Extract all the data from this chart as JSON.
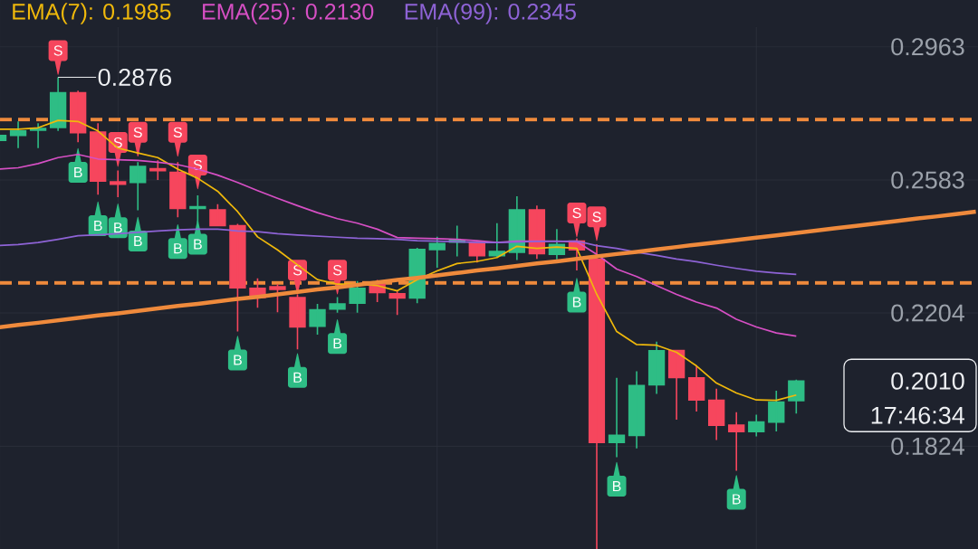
{
  "chart_data": {
    "type": "candlestick",
    "categories": [
      null,
      null,
      null,
      null,
      null,
      null,
      null,
      null,
      null,
      null,
      null,
      null,
      null,
      null,
      null,
      null,
      null,
      null,
      null,
      null,
      null,
      null,
      null,
      null,
      null,
      null,
      null,
      null,
      null,
      null,
      null,
      null,
      null,
      null,
      null,
      null,
      null,
      null,
      null,
      null,
      null,
      null,
      null,
      null,
      null,
      null,
      null,
      null,
      null,
      null
    ],
    "ohlc": [
      [
        0.2696,
        0.271,
        0.2696,
        0.271
      ],
      [
        0.271,
        0.275,
        0.2674,
        0.2723
      ],
      [
        0.2725,
        0.2745,
        0.2674,
        0.273
      ],
      [
        0.2733,
        0.2876,
        0.2723,
        0.2832
      ],
      [
        0.2832,
        0.2838,
        0.2691,
        0.2718
      ],
      [
        0.272,
        0.2745,
        0.2541,
        0.258
      ],
      [
        0.2578,
        0.261,
        0.2534,
        0.2571
      ],
      [
        0.2576,
        0.2634,
        0.2497,
        0.2622
      ],
      [
        0.2615,
        0.2639,
        0.2583,
        0.261
      ],
      [
        0.2605,
        0.2634,
        0.2477,
        0.2502
      ],
      [
        0.2502,
        0.2539,
        0.246,
        0.2507
      ],
      [
        0.2498,
        0.2514,
        0.2453,
        0.2453
      ],
      [
        0.2453,
        0.2458,
        0.2151,
        0.2276
      ],
      [
        0.2274,
        0.2303,
        0.2219,
        0.2248
      ],
      [
        0.2279,
        0.2286,
        0.2206,
        0.2271
      ],
      [
        0.2248,
        0.2257,
        0.21,
        0.2164
      ],
      [
        0.2166,
        0.223,
        0.2142,
        0.2213
      ],
      [
        0.2215,
        0.2249,
        0.2205,
        0.223
      ],
      [
        0.2232,
        0.2295,
        0.2205,
        0.2274
      ],
      [
        0.2286,
        0.2298,
        0.2235,
        0.2262
      ],
      [
        0.2259,
        0.2265,
        0.2198,
        0.2247
      ],
      [
        0.2247,
        0.239,
        0.2232,
        0.2385
      ],
      [
        0.2385,
        0.2421,
        0.2333,
        0.2402
      ],
      [
        0.2406,
        0.2453,
        0.2365,
        0.2411
      ],
      [
        0.2405,
        0.2405,
        0.2348,
        0.2367
      ],
      [
        0.2367,
        0.246,
        0.2362,
        0.2379
      ],
      [
        0.2377,
        0.2537,
        0.2355,
        0.2498
      ],
      [
        0.2498,
        0.251,
        0.2358,
        0.2373
      ],
      [
        0.2371,
        0.2443,
        0.2357,
        0.2399
      ],
      [
        0.2409,
        0.2417,
        0.2325,
        0.2384
      ],
      [
        0.2357,
        0.24,
        0.1531,
        0.1835
      ],
      [
        0.1835,
        0.2019,
        0.1793,
        0.1855
      ],
      [
        0.1855,
        0.2038,
        0.1818,
        0.1997
      ],
      [
        0.1999,
        0.2122,
        0.1973,
        0.2096
      ],
      [
        0.2097,
        0.2097,
        0.19,
        0.202
      ],
      [
        0.2019,
        0.2054,
        0.1923,
        0.1956
      ],
      [
        0.1955,
        0.1988,
        0.1842,
        0.1884
      ],
      [
        0.1884,
        0.1921,
        0.1754,
        0.1866
      ],
      [
        0.1866,
        0.1914,
        0.1852,
        0.1893
      ],
      [
        0.1893,
        0.1982,
        0.1866,
        0.195
      ],
      [
        0.1954,
        0.2014,
        0.1917,
        0.201
      ],
      null,
      null,
      null,
      null,
      null,
      null,
      null,
      null,
      null
    ],
    "colors": [
      "#2ebd85",
      "#2ebd85",
      "#2ebd85",
      "#2ebd85",
      "#f6465d",
      "#f6465d",
      "#f6465d",
      "#2ebd85",
      "#f6465d",
      "#f6465d",
      "#2ebd85",
      "#f6465d",
      "#f6465d",
      "#f6465d",
      "#f6465d",
      "#f6465d",
      "#2ebd85",
      "#2ebd85",
      "#2ebd85",
      "#f6465d",
      "#f6465d",
      "#2ebd85",
      "#2ebd85",
      "#2ebd85",
      "#f6465d",
      "#2ebd85",
      "#2ebd85",
      "#f6465d",
      "#2ebd85",
      "#f6465d",
      "#f6465d",
      "#2ebd85",
      "#2ebd85",
      "#2ebd85",
      "#f6465d",
      "#f6465d",
      "#f6465d",
      "#f6465d",
      "#2ebd85",
      "#2ebd85",
      "#2ebd85",
      null,
      null,
      null,
      null,
      null,
      null,
      null,
      null,
      null
    ],
    "series": [
      {
        "name": "EMA(7): 0.1985",
        "type": "line",
        "color": "#f0b90b",
        "values": [
          0.2728,
          0.2728,
          0.2732,
          0.2753,
          0.275,
          0.2723,
          0.2674,
          0.266,
          0.2647,
          0.2614,
          0.2588,
          0.2551,
          0.2493,
          0.2421,
          0.2384,
          0.2341,
          0.2299,
          0.2286,
          0.2286,
          0.2282,
          0.2267,
          0.2299,
          0.2324,
          0.2345,
          0.2351,
          0.2362,
          0.2394,
          0.2388,
          0.2392,
          0.2388,
          0.2257,
          0.2151,
          0.2114,
          0.2112,
          0.2092,
          0.2053,
          0.2004,
          0.1976,
          0.1956,
          0.1955,
          0.197,
          null,
          null,
          null,
          null,
          null,
          null,
          null,
          null,
          null
        ]
      },
      {
        "name": "EMA(25): 0.2130",
        "type": "line",
        "color": "#d64fc4",
        "values": [
          0.2614,
          0.2618,
          0.263,
          0.2647,
          0.2656,
          0.2643,
          0.2641,
          0.2639,
          0.2634,
          0.2627,
          0.2614,
          0.2597,
          0.2576,
          0.2553,
          0.2531,
          0.251,
          0.249,
          0.2473,
          0.246,
          0.2443,
          0.2419,
          0.2417,
          0.2416,
          0.2414,
          0.241,
          0.2405,
          0.2409,
          0.2409,
          0.2409,
          0.2407,
          0.2371,
          0.2329,
          0.2308,
          0.2282,
          0.2257,
          0.2235,
          0.2218,
          0.2186,
          0.2164,
          0.2147,
          0.2138,
          null,
          null,
          null,
          null,
          null,
          null,
          null,
          null,
          null
        ]
      },
      {
        "name": "EMA(99): 0.2345",
        "type": "line",
        "color": "#8e63d6",
        "values": [
          0.2396,
          0.2399,
          0.2405,
          0.2414,
          0.2424,
          0.2427,
          0.243,
          0.2434,
          0.2438,
          0.2441,
          0.2443,
          0.2443,
          0.2438,
          0.2436,
          0.243,
          0.2426,
          0.2423,
          0.242,
          0.2417,
          0.2416,
          0.2414,
          0.241,
          0.2409,
          0.2407,
          0.2405,
          0.2405,
          0.2406,
          0.2408,
          0.2408,
          0.2409,
          0.2396,
          0.2388,
          0.2377,
          0.2368,
          0.2358,
          0.235,
          0.234,
          0.2331,
          0.2323,
          0.2318,
          0.2314,
          null,
          null,
          null,
          null,
          null,
          null,
          null,
          null,
          null
        ]
      },
      {
        "type": "line",
        "color": "#ef8a3c",
        "values": [
          0.2163,
          0.217,
          0.2176,
          0.2183,
          0.219,
          0.2197,
          0.2203,
          0.221,
          0.2217,
          0.2224,
          0.223,
          0.2237,
          0.2244,
          0.225,
          0.2257,
          0.2264,
          0.2271,
          0.2277,
          0.2284,
          0.2291,
          0.2298,
          0.2304,
          0.2311,
          0.2318,
          0.2325,
          0.2331,
          0.2338,
          0.2345,
          0.2351,
          0.2358,
          0.2365,
          0.2372,
          0.2378,
          0.2385,
          0.2392,
          0.2399,
          0.2405,
          0.2412,
          0.2419,
          0.2425,
          0.2432,
          0.2439,
          0.2446,
          0.2452,
          0.2459,
          0.2466,
          0.2473,
          0.2479,
          0.2486,
          0.2493
        ]
      },
      {
        "name": "B",
        "type": "scatter",
        "color": "#2ebd85",
        "values": [
          null,
          null,
          null,
          null,
          0.2605,
          0.2453,
          0.2447,
          0.2409,
          null,
          0.2388,
          0.24,
          null,
          0.207,
          null,
          null,
          0.202,
          null,
          0.2117,
          null,
          null,
          null,
          null,
          null,
          null,
          null,
          null,
          null,
          null,
          null,
          0.2235,
          null,
          0.171,
          null,
          null,
          null,
          null,
          null,
          0.1673,
          null,
          null,
          null,
          null,
          null,
          null,
          null,
          null,
          null,
          null,
          null,
          null
        ]
      },
      {
        "name": "S",
        "type": "scatter",
        "color": "#f6465d",
        "values": [
          null,
          null,
          null,
          0.2952,
          null,
          null,
          0.269,
          0.2719,
          null,
          0.2719,
          0.2626,
          null,
          null,
          null,
          null,
          0.2326,
          null,
          0.2326,
          null,
          null,
          null,
          null,
          null,
          null,
          null,
          null,
          null,
          null,
          null,
          0.2489,
          0.2478,
          null,
          null,
          null,
          null,
          null,
          null,
          null,
          null,
          null,
          null,
          null,
          null,
          null,
          null,
          null,
          null,
          null,
          null,
          null
        ]
      }
    ],
    "ylim": [
      0.1531,
      0.3019
    ],
    "yticks": [
      0.2963,
      0.2583,
      0.2204,
      0.1824
    ],
    "ref_lines": [
      {
        "axis": "y",
        "value": 0.2755,
        "color": "#ef8a3c",
        "line_style": "dashed"
      },
      {
        "axis": "y",
        "value": 0.229,
        "color": "#ef8a3c",
        "line_style": "dashed"
      }
    ],
    "annotations": [
      "0.2876",
      "0.2010",
      "17:46:34"
    ],
    "grid": true,
    "legend": "top left"
  }
}
